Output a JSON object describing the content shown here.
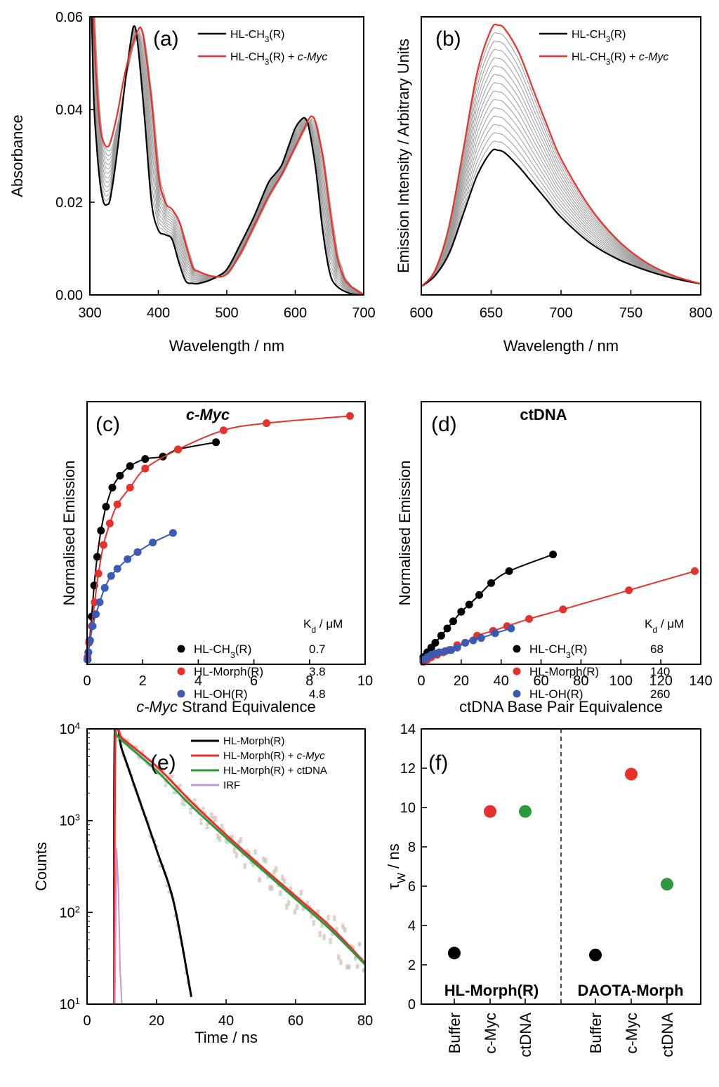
{
  "chart_data": [
    {
      "id": "a",
      "panel_label": "(a)",
      "type": "line",
      "xlabel": "Wavelength / nm",
      "ylabel": "Absorbance",
      "xlim": [
        300,
        700
      ],
      "ylim": [
        0,
        0.06
      ],
      "xticks": [
        "300",
        "400",
        "500",
        "600",
        "700"
      ],
      "yticks": [
        "0.00",
        "0.02",
        "0.04",
        "0.06"
      ],
      "legend": {
        "position": "top-right",
        "entries": [
          {
            "label": "HL-CH",
            "sub": "3",
            "tail": "(R)",
            "color": "#000000"
          },
          {
            "label": "HL-CH",
            "sub": "3",
            "tail": "(R) + ",
            "italic": "c-Myc",
            "color": "#e8312a"
          }
        ]
      },
      "series": [
        {
          "color": "#000000",
          "x": [
            300,
            305,
            310,
            315,
            320,
            325,
            330,
            340,
            350,
            360,
            365,
            370,
            380,
            390,
            400,
            410,
            420,
            430,
            440,
            450,
            460,
            480,
            500,
            520,
            540,
            560,
            570,
            580,
            590,
            600,
            610,
            615,
            620,
            630,
            640,
            650,
            660,
            680,
            700
          ],
          "y": [
            0.08,
            0.045,
            0.032,
            0.024,
            0.02,
            0.0195,
            0.021,
            0.031,
            0.044,
            0.055,
            0.058,
            0.054,
            0.038,
            0.02,
            0.014,
            0.013,
            0.012,
            0.007,
            0.003,
            0.0025,
            0.0025,
            0.0035,
            0.0055,
            0.011,
            0.017,
            0.024,
            0.026,
            0.028,
            0.032,
            0.036,
            0.038,
            0.038,
            0.036,
            0.027,
            0.014,
            0.005,
            0.002,
            0.0003,
            0
          ]
        },
        {
          "color": "#e8312a",
          "x": [
            300,
            305,
            310,
            315,
            320,
            325,
            330,
            340,
            350,
            360,
            370,
            375,
            380,
            390,
            400,
            410,
            420,
            430,
            440,
            450,
            460,
            480,
            500,
            520,
            540,
            560,
            580,
            590,
            600,
            610,
            620,
            625,
            630,
            640,
            650,
            660,
            670,
            680,
            700
          ],
          "y": [
            0.08,
            0.06,
            0.045,
            0.036,
            0.033,
            0.032,
            0.033,
            0.039,
            0.047,
            0.053,
            0.057,
            0.0575,
            0.054,
            0.042,
            0.026,
            0.02,
            0.0185,
            0.016,
            0.011,
            0.006,
            0.005,
            0.004,
            0.0045,
            0.009,
            0.015,
            0.021,
            0.026,
            0.029,
            0.032,
            0.035,
            0.038,
            0.0385,
            0.037,
            0.03,
            0.019,
            0.009,
            0.004,
            0.002,
            0
          ]
        }
      ]
    },
    {
      "id": "b",
      "panel_label": "(b)",
      "type": "line",
      "xlabel": "Wavelength / nm",
      "ylabel": "Emission Intensity / Arbitrary Units",
      "xlim": [
        600,
        800
      ],
      "ylim": [
        0,
        1
      ],
      "xticks": [
        "600",
        "650",
        "700",
        "750",
        "800"
      ],
      "yticks": [],
      "legend": {
        "position": "top-right",
        "entries": [
          {
            "label": "HL-CH",
            "sub": "3",
            "tail": "(R)",
            "color": "#000000"
          },
          {
            "label": "HL-CH",
            "sub": "3",
            "tail": "(R) + ",
            "italic": "c-Myc",
            "color": "#e8312a"
          }
        ]
      },
      "series": [
        {
          "color": "#000000",
          "peak": 0.52,
          "x": [
            600,
            610,
            620,
            630,
            640,
            650,
            655,
            660,
            670,
            680,
            690,
            700,
            720,
            740,
            760,
            780,
            800
          ],
          "y": [
            0.03,
            0.07,
            0.15,
            0.29,
            0.43,
            0.515,
            0.52,
            0.51,
            0.46,
            0.4,
            0.34,
            0.28,
            0.19,
            0.13,
            0.09,
            0.06,
            0.04
          ]
        },
        {
          "color": "#e8312a",
          "peak": 0.97,
          "x": [
            600,
            610,
            620,
            630,
            640,
            650,
            655,
            660,
            670,
            680,
            690,
            700,
            720,
            740,
            760,
            780,
            800
          ],
          "y": [
            0.03,
            0.09,
            0.25,
            0.52,
            0.8,
            0.955,
            0.97,
            0.955,
            0.87,
            0.74,
            0.61,
            0.49,
            0.32,
            0.2,
            0.12,
            0.07,
            0.04
          ]
        }
      ]
    },
    {
      "id": "c",
      "panel_label": "(c)",
      "title": "c-Myc",
      "type": "scatter",
      "xlabel": "c-Myc",
      "xlabel_tail": " Strand Equivalence",
      "ylabel": "Normalised Emission",
      "xlim": [
        0,
        11
      ],
      "ylim": [
        0,
        1.1
      ],
      "xticks": [
        "0",
        "2",
        "4",
        "6",
        "8",
        "10"
      ],
      "kd_header": "K",
      "kd_sub": "d",
      "kd_unit": " / μM",
      "series": [
        {
          "name": "HL-CH",
          "sub": "3",
          "tail": "(R)",
          "kd": "0.7",
          "color": "#000000",
          "x_end": 5.1,
          "x": [
            0.02,
            0.05,
            0.1,
            0.18,
            0.28,
            0.4,
            0.55,
            0.75,
            1.0,
            1.3,
            1.7,
            2.3,
            3.0,
            3.6,
            5.1
          ],
          "y": [
            0.02,
            0.05,
            0.1,
            0.2,
            0.33,
            0.45,
            0.56,
            0.66,
            0.74,
            0.79,
            0.83,
            0.86,
            0.87,
            0.9,
            0.93
          ]
        },
        {
          "name": "HL-Morph",
          "tail": "(R)",
          "kd": "3.8",
          "color": "#e8312a",
          "x_end": 10.4,
          "x": [
            0.02,
            0.08,
            0.18,
            0.3,
            0.45,
            0.65,
            0.9,
            1.2,
            1.7,
            2.3,
            3.6,
            5.4,
            7.1,
            10.4
          ],
          "y": [
            0.03,
            0.09,
            0.16,
            0.26,
            0.38,
            0.5,
            0.59,
            0.67,
            0.74,
            0.82,
            0.9,
            0.98,
            1.01,
            1.04
          ]
        },
        {
          "name": "HL-OH",
          "tail": "(R)",
          "kd": "4.8",
          "color": "#3b5ab6",
          "x_end": 3.4,
          "x": [
            0.01,
            0.05,
            0.12,
            0.22,
            0.35,
            0.5,
            0.7,
            0.95,
            1.2,
            1.6,
            2.0,
            2.6,
            3.4
          ],
          "y": [
            0.02,
            0.05,
            0.1,
            0.16,
            0.21,
            0.26,
            0.32,
            0.37,
            0.4,
            0.44,
            0.47,
            0.51,
            0.55
          ]
        }
      ]
    },
    {
      "id": "d",
      "panel_label": "(d)",
      "title": "ctDNA",
      "type": "scatter",
      "xlabel": "ctDNA Base Pair Equivalence",
      "ylabel": "Normalised Emission",
      "xlim": [
        0,
        140
      ],
      "ylim": [
        0,
        1.1
      ],
      "xticks": [
        "0",
        "20",
        "40",
        "60",
        "80",
        "100",
        "120",
        "140"
      ],
      "kd_header": "K",
      "kd_sub": "d",
      "kd_unit": " / μM",
      "series": [
        {
          "name": "HL-CH",
          "sub": "3",
          "tail": "(R)",
          "kd": "68",
          "color": "#000000",
          "x_end": 66,
          "x": [
            1,
            3,
            5,
            7,
            10,
            13,
            16,
            20,
            24,
            29,
            35,
            44,
            66
          ],
          "y": [
            0.03,
            0.05,
            0.07,
            0.09,
            0.12,
            0.15,
            0.18,
            0.22,
            0.25,
            0.29,
            0.34,
            0.39,
            0.46
          ]
        },
        {
          "name": "HL-Morph",
          "tail": "(R)",
          "kd": "140",
          "color": "#e8312a",
          "x_end": 137,
          "x": [
            1,
            3,
            5,
            8,
            11,
            14,
            18,
            22,
            28,
            36,
            43,
            54,
            71,
            104,
            137
          ],
          "y": [
            0.01,
            0.02,
            0.03,
            0.04,
            0.05,
            0.06,
            0.08,
            0.09,
            0.12,
            0.14,
            0.16,
            0.19,
            0.23,
            0.31,
            0.39
          ]
        },
        {
          "name": "HL-OH",
          "tail": "(R)",
          "kd": "260",
          "color": "#3b5ab6",
          "x_end": 45,
          "x": [
            1,
            3,
            5,
            7,
            9,
            12,
            15,
            18,
            22,
            26,
            30,
            37,
            45
          ],
          "y": [
            0.02,
            0.03,
            0.04,
            0.045,
            0.05,
            0.055,
            0.06,
            0.07,
            0.09,
            0.1,
            0.11,
            0.13,
            0.15
          ]
        }
      ]
    },
    {
      "id": "e",
      "panel_label": "(e)",
      "type": "line",
      "scale_y": "log",
      "xlabel": "Time / ns",
      "ylabel": "Counts",
      "xlim": [
        0,
        80
      ],
      "ylim": [
        10,
        10000
      ],
      "xticks": [
        "0",
        "20",
        "40",
        "60",
        "80"
      ],
      "yticks": [
        {
          "base": "10",
          "exp": "1"
        },
        {
          "base": "10",
          "exp": "2"
        },
        {
          "base": "10",
          "exp": "3"
        },
        {
          "base": "10",
          "exp": "4"
        }
      ],
      "legend": {
        "position": "top-right",
        "entries": [
          {
            "label": "HL-Morph(R)",
            "color": "#000000"
          },
          {
            "label": "HL-Morph(R) + ",
            "italic": "c-Myc",
            "color": "#e8312a"
          },
          {
            "label": "HL-Morph(R) + ctDNA",
            "color": "#2a9a3a"
          },
          {
            "label": "IRF",
            "color": "#c49ad4"
          }
        ]
      },
      "series": [
        {
          "color": "#000000",
          "x": [
            7.8,
            8,
            10,
            15,
            20,
            25,
            30
          ],
          "y": [
            10,
            10000,
            6000,
            1700,
            480,
            125,
            12
          ]
        },
        {
          "color": "#e8312a",
          "x": [
            7.8,
            8.2,
            10,
            20,
            30,
            40,
            50,
            60,
            70,
            80
          ],
          "y": [
            10,
            10000,
            8000,
            3900,
            1600,
            700,
            320,
            150,
            70,
            28
          ]
        },
        {
          "color": "#2a9a3a",
          "x": [
            8.3,
            10,
            20,
            30,
            40,
            50,
            60,
            70,
            80
          ],
          "y": [
            9000,
            7500,
            3500,
            1450,
            650,
            300,
            140,
            65,
            27
          ]
        },
        {
          "color": "#c49ad4",
          "x": [
            8,
            8.5,
            9,
            9.5,
            10
          ],
          "y": [
            10,
            500,
            180,
            25,
            10
          ]
        }
      ]
    },
    {
      "id": "f",
      "panel_label": "(f)",
      "type": "scatter",
      "ylabel": "τ",
      "ylabel_sub": "W",
      "ylabel_tail": " / ns",
      "ylim": [
        0,
        14
      ],
      "yticks": [
        "0",
        "2",
        "4",
        "6",
        "8",
        "10",
        "12",
        "14"
      ],
      "categories": [
        "Buffer",
        "c-Myc",
        "ctDNA",
        "Buffer",
        "c-Myc",
        "ctDNA"
      ],
      "groups": [
        "HL-Morph(R)",
        "DAOTA-Morph"
      ],
      "series": [
        {
          "group": "HL-Morph(R)",
          "points": [
            {
              "cat": 0,
              "y": 2.6,
              "color": "#000000"
            },
            {
              "cat": 1,
              "y": 9.8,
              "color": "#e8312a"
            },
            {
              "cat": 2,
              "y": 9.8,
              "color": "#2a9a3a"
            }
          ]
        },
        {
          "group": "DAOTA-Morph",
          "points": [
            {
              "cat": 3,
              "y": 2.5,
              "color": "#000000"
            },
            {
              "cat": 4,
              "y": 11.7,
              "color": "#e8312a"
            },
            {
              "cat": 5,
              "y": 6.1,
              "color": "#2a9a3a"
            }
          ]
        }
      ]
    }
  ]
}
